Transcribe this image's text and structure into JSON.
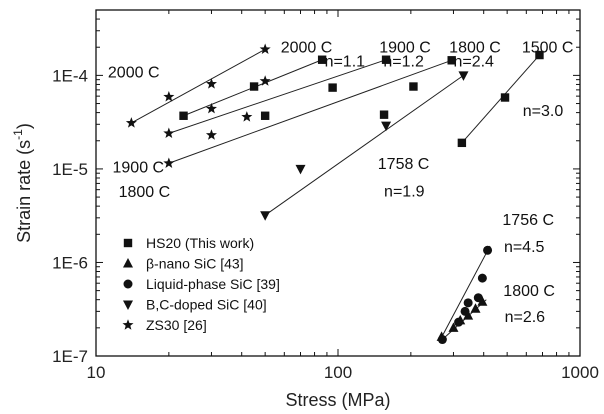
{
  "chart_data": {
    "type": "scatter",
    "title": "",
    "xlabel": "Stress (MPa)",
    "ylabel_main": "Strain rate (s",
    "ylabel_sup": "-1",
    "ylabel_close": ")",
    "xscale": "log",
    "yscale": "log",
    "xlim": [
      10,
      1000
    ],
    "ylim": [
      1e-07,
      0.0005
    ],
    "x_tick_values": [
      10,
      100,
      1000
    ],
    "x_tick_labels": [
      "10",
      "100",
      "1000"
    ],
    "y_tick_values": [
      1e-07,
      1e-06,
      1e-05,
      0.0001
    ],
    "y_tick_labels": [
      "1E-7",
      "1E-6",
      "1E-5",
      "1E-4"
    ],
    "grid": false,
    "legend_position": "bottom-left",
    "series": [
      {
        "name": "HS20 (This work)",
        "marker": "square",
        "points": [
          [
            23,
            3.7e-05
          ],
          [
            50,
            3.7e-05
          ],
          [
            95,
            7.4e-05
          ],
          [
            45,
            7.6e-05
          ],
          [
            86,
            0.000147
          ],
          [
            158,
            0.000147
          ],
          [
            155,
            3.8e-05
          ],
          [
            205,
            7.6e-05
          ],
          [
            295,
            0.000145
          ],
          [
            325,
            1.9e-05
          ],
          [
            490,
            5.8e-05
          ],
          [
            680,
            0.000165
          ]
        ]
      },
      {
        "name": "β-nano SiC [43]",
        "marker": "triangle-up",
        "points": [
          [
            268,
            1.6e-07
          ],
          [
            300,
            2e-07
          ],
          [
            320,
            2.4e-07
          ],
          [
            345,
            2.7e-07
          ],
          [
            370,
            3.2e-07
          ],
          [
            395,
            3.8e-07
          ]
        ]
      },
      {
        "name": "Liquid-phase SiC [39]",
        "marker": "circle",
        "points": [
          [
            270,
            1.5e-07
          ],
          [
            315,
            2.3e-07
          ],
          [
            335,
            3e-07
          ],
          [
            345,
            3.7e-07
          ],
          [
            380,
            4.2e-07
          ],
          [
            395,
            6.8e-07
          ],
          [
            415,
            1.35e-06
          ]
        ]
      },
      {
        "name": "B,C-doped SiC [40]",
        "marker": "triangle-down",
        "points": [
          [
            50,
            3.2e-06
          ],
          [
            70,
            1e-05
          ],
          [
            158,
            2.9e-05
          ],
          [
            330,
            0.0001
          ]
        ]
      },
      {
        "name": "ZS30 [26]",
        "marker": "star",
        "points": [
          [
            14,
            3.1e-05
          ],
          [
            20,
            5.9e-05
          ],
          [
            30,
            8.1e-05
          ],
          [
            50,
            0.00019
          ],
          [
            20,
            2.4e-05
          ],
          [
            30,
            4.4e-05
          ],
          [
            50,
            8.7e-05
          ],
          [
            20,
            1.15e-05
          ],
          [
            30,
            2.3e-05
          ],
          [
            42,
            3.6e-05
          ]
        ]
      }
    ],
    "fit_lines": [
      {
        "x": [
          14,
          50
        ],
        "y": [
          3.1e-05,
          0.00019
        ]
      },
      {
        "x": [
          23,
          86
        ],
        "y": [
          3.7e-05,
          0.000147
        ]
      },
      {
        "x": [
          20,
          158
        ],
        "y": [
          2.4e-05,
          0.000147
        ]
      },
      {
        "x": [
          20,
          295
        ],
        "y": [
          1.15e-05,
          0.000145
        ]
      },
      {
        "x": [
          50,
          330
        ],
        "y": [
          3.2e-06,
          0.0001
        ]
      },
      {
        "x": [
          325,
          680
        ],
        "y": [
          1.9e-05,
          0.000165
        ]
      },
      {
        "x": [
          265,
          425
        ],
        "y": [
          1.5e-07,
          1.5e-06
        ]
      },
      {
        "x": [
          270,
          410
        ],
        "y": [
          1.5e-07,
          4e-07
        ]
      }
    ],
    "annotations": [
      {
        "text": "2000 C",
        "x": 11.2,
        "y": 9.5e-05
      },
      {
        "text": "1900 C",
        "x": 11.7,
        "y": 9.2e-06
      },
      {
        "text": "1800 C",
        "x": 12.4,
        "y": 5e-06
      },
      {
        "text": "2000 C",
        "x": 58,
        "y": 0.000175
      },
      {
        "text": "n=1.1",
        "x": 88,
        "y": 0.000125
      },
      {
        "text": "1900 C",
        "x": 148,
        "y": 0.000175
      },
      {
        "text": "n=1.2",
        "x": 154,
        "y": 0.000125
      },
      {
        "text": "1800 C",
        "x": 288,
        "y": 0.000175
      },
      {
        "text": "n=2.4",
        "x": 300,
        "y": 0.000125
      },
      {
        "text": "1500 C",
        "x": 575,
        "y": 0.000175
      },
      {
        "text": "n=3.0",
        "x": 580,
        "y": 3.7e-05
      },
      {
        "text": "1758 C",
        "x": 146,
        "y": 1e-05
      },
      {
        "text": "n=1.9",
        "x": 155,
        "y": 5.1e-06
      },
      {
        "text": "1756 C",
        "x": 478,
        "y": 2.5e-06
      },
      {
        "text": "n=4.5",
        "x": 485,
        "y": 1.3e-06
      },
      {
        "text": "1800 C",
        "x": 482,
        "y": 4.4e-07
      },
      {
        "text": "n=2.6",
        "x": 488,
        "y": 2.3e-07
      }
    ]
  }
}
